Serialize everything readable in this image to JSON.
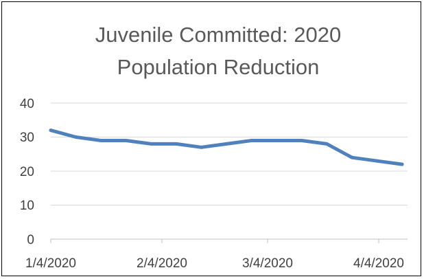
{
  "chart_data": {
    "type": "line",
    "title_lines": [
      "Juvenile Committed: 2020",
      "Population Reduction"
    ],
    "xlabel": "",
    "ylabel": "",
    "ylim": [
      0,
      40
    ],
    "y_ticks": [
      "0",
      "10",
      "20",
      "30",
      "40"
    ],
    "x_tick_labels": [
      "1/4/2020",
      "2/4/2020",
      "3/4/2020",
      "4/4/2020"
    ],
    "grid": true,
    "legend": "none",
    "line_color": "#4F81BD",
    "series": [
      {
        "x": [
          "2020-01-04",
          "2020-01-11",
          "2020-01-18",
          "2020-01-25",
          "2020-02-01",
          "2020-02-08",
          "2020-02-15",
          "2020-02-22",
          "2020-02-29",
          "2020-03-07",
          "2020-03-14",
          "2020-03-21",
          "2020-03-28",
          "2020-04-04",
          "2020-04-11"
        ],
        "values": [
          32,
          30,
          29,
          29,
          28,
          28,
          27,
          28,
          29,
          29,
          29,
          28,
          24,
          23,
          22
        ]
      }
    ]
  }
}
